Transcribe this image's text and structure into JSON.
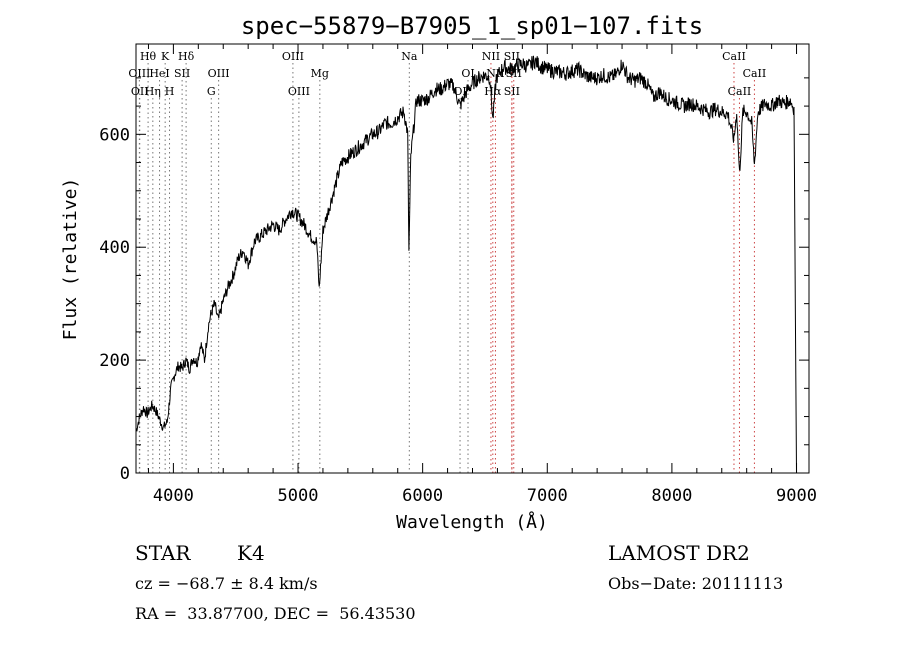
{
  "chart_data": {
    "type": "line",
    "title": "spec−55879−B7905_1_sp01−107.fits",
    "xlabel": "Wavelength (Å)",
    "ylabel": "Flux (relative)",
    "xlim": [
      3700,
      9100
    ],
    "ylim": [
      0,
      760
    ],
    "xticks": [
      4000,
      5000,
      6000,
      7000,
      8000,
      9000
    ],
    "yticks": [
      0,
      200,
      400,
      600
    ],
    "grid": false,
    "series": [
      {
        "values": [
          [
            3700,
            75
          ],
          [
            3730,
            100
          ],
          [
            3760,
            115
          ],
          [
            3790,
            105
          ],
          [
            3830,
            120
          ],
          [
            3860,
            110
          ],
          [
            3890,
            95
          ],
          [
            3920,
            80
          ],
          [
            3950,
            90
          ],
          [
            3980,
            150
          ],
          [
            4010,
            175
          ],
          [
            4040,
            190
          ],
          [
            4070,
            185
          ],
          [
            4100,
            200
          ],
          [
            4130,
            185
          ],
          [
            4160,
            205
          ],
          [
            4190,
            195
          ],
          [
            4220,
            230
          ],
          [
            4250,
            200
          ],
          [
            4280,
            260
          ],
          [
            4300,
            280
          ],
          [
            4330,
            300
          ],
          [
            4360,
            270
          ],
          [
            4400,
            305
          ],
          [
            4440,
            330
          ],
          [
            4480,
            350
          ],
          [
            4520,
            380
          ],
          [
            4560,
            395
          ],
          [
            4600,
            370
          ],
          [
            4650,
            410
          ],
          [
            4700,
            420
          ],
          [
            4750,
            430
          ],
          [
            4800,
            440
          ],
          [
            4850,
            430
          ],
          [
            4900,
            450
          ],
          [
            4950,
            465
          ],
          [
            5000,
            455
          ],
          [
            5050,
            440
          ],
          [
            5100,
            420
          ],
          [
            5150,
            410
          ],
          [
            5170,
            325
          ],
          [
            5200,
            430
          ],
          [
            5250,
            470
          ],
          [
            5300,
            510
          ],
          [
            5350,
            550
          ],
          [
            5400,
            560
          ],
          [
            5450,
            570
          ],
          [
            5500,
            580
          ],
          [
            5550,
            590
          ],
          [
            5600,
            600
          ],
          [
            5650,
            605
          ],
          [
            5700,
            620
          ],
          [
            5750,
            620
          ],
          [
            5800,
            630
          ],
          [
            5850,
            640
          ],
          [
            5880,
            600
          ],
          [
            5890,
            390
          ],
          [
            5905,
            560
          ],
          [
            5950,
            660
          ],
          [
            6000,
            660
          ],
          [
            6050,
            665
          ],
          [
            6100,
            680
          ],
          [
            6150,
            680
          ],
          [
            6200,
            690
          ],
          [
            6250,
            685
          ],
          [
            6300,
            650
          ],
          [
            6350,
            675
          ],
          [
            6400,
            690
          ],
          [
            6450,
            700
          ],
          [
            6500,
            705
          ],
          [
            6540,
            700
          ],
          [
            6563,
            625
          ],
          [
            6590,
            700
          ],
          [
            6650,
            720
          ],
          [
            6700,
            715
          ],
          [
            6750,
            720
          ],
          [
            6800,
            725
          ],
          [
            6850,
            720
          ],
          [
            6900,
            730
          ],
          [
            6950,
            720
          ],
          [
            7000,
            715
          ],
          [
            7050,
            712
          ],
          [
            7100,
            710
          ],
          [
            7150,
            708
          ],
          [
            7200,
            712
          ],
          [
            7250,
            715
          ],
          [
            7300,
            705
          ],
          [
            7350,
            700
          ],
          [
            7400,
            700
          ],
          [
            7450,
            705
          ],
          [
            7500,
            700
          ],
          [
            7550,
            705
          ],
          [
            7600,
            725
          ],
          [
            7650,
            700
          ],
          [
            7700,
            695
          ],
          [
            7750,
            700
          ],
          [
            7800,
            690
          ],
          [
            7850,
            665
          ],
          [
            7900,
            675
          ],
          [
            7950,
            665
          ],
          [
            8000,
            660
          ],
          [
            8050,
            655
          ],
          [
            8100,
            650
          ],
          [
            8150,
            655
          ],
          [
            8200,
            650
          ],
          [
            8250,
            645
          ],
          [
            8300,
            640
          ],
          [
            8350,
            645
          ],
          [
            8400,
            640
          ],
          [
            8450,
            635
          ],
          [
            8498,
            590
          ],
          [
            8520,
            640
          ],
          [
            8542,
            530
          ],
          [
            8570,
            640
          ],
          [
            8600,
            640
          ],
          [
            8640,
            620
          ],
          [
            8662,
            545
          ],
          [
            8690,
            640
          ],
          [
            8750,
            655
          ],
          [
            8800,
            650
          ],
          [
            8850,
            660
          ],
          [
            8900,
            655
          ],
          [
            8950,
            660
          ],
          [
            8980,
            645
          ],
          [
            8990,
            300
          ],
          [
            9000,
            0
          ]
        ]
      }
    ],
    "lines": [
      {
        "label": "Hθ",
        "x": 3797,
        "row": 0,
        "color": "#777777"
      },
      {
        "label": "K",
        "x": 3934,
        "row": 0,
        "color": "#777777"
      },
      {
        "label": "Hδ",
        "x": 4102,
        "row": 0,
        "color": "#777777"
      },
      {
        "label": "OIII",
        "x": 3727,
        "row": 1,
        "color": "#777777"
      },
      {
        "label": "HeI",
        "x": 3889,
        "row": 1,
        "color": "#777777"
      },
      {
        "label": "SII",
        "x": 4070,
        "row": 1,
        "color": "#777777"
      },
      {
        "label": "OII",
        "x": 3730,
        "row": 2,
        "color": "#777777"
      },
      {
        "label": "Hη",
        "x": 3835,
        "row": 2,
        "color": "#777777"
      },
      {
        "label": "H",
        "x": 3969,
        "row": 2,
        "color": "#777777"
      },
      {
        "label": "OIII",
        "x": 4363,
        "row": 1,
        "color": "#777777"
      },
      {
        "label": "G",
        "x": 4304,
        "row": 2,
        "color": "#777777"
      },
      {
        "label": "OIII",
        "x": 4959,
        "row": 0,
        "color": "#777777"
      },
      {
        "label": "Mg",
        "x": 5175,
        "row": 1,
        "color": "#777777"
      },
      {
        "label": "OIII",
        "x": 5007,
        "row": 2,
        "color": "#777777"
      },
      {
        "label": "Na",
        "x": 5893,
        "row": 0,
        "color": "#777777"
      },
      {
        "label": "OI",
        "x": 6300,
        "row": 2,
        "color": "#777777"
      },
      {
        "label": "OI",
        "x": 6364,
        "row": 1,
        "color": "#777777"
      },
      {
        "label": "NII",
        "x": 6548,
        "row": 0,
        "color": "#cc4444"
      },
      {
        "label": "SII",
        "x": 6716,
        "row": 0,
        "color": "#cc4444"
      },
      {
        "label": "NII",
        "x": 6584,
        "row": 1,
        "color": "#cc4444"
      },
      {
        "label": "SII",
        "x": 6731,
        "row": 1,
        "color": "#cc4444"
      },
      {
        "label": "Hα",
        "x": 6563,
        "row": 2,
        "color": "#cc4444"
      },
      {
        "label": "SII",
        "x": 6716,
        "row": 2,
        "color": "#cc4444"
      },
      {
        "label": "CaII",
        "x": 8498,
        "row": 0,
        "color": "#cc4444"
      },
      {
        "label": "CaII",
        "x": 8662,
        "row": 1,
        "color": "#cc4444"
      },
      {
        "label": "CaII",
        "x": 8542,
        "row": 2,
        "color": "#cc4444"
      }
    ]
  },
  "info": {
    "object_class": "STAR",
    "subclass": "K4",
    "survey": "LAMOST DR2",
    "redshift": "cz = −68.7 ± 8.4 km/s",
    "obs_date": "Obs−Date: 20111113",
    "coords": "RA =  33.87700, DEC =  56.43530"
  }
}
